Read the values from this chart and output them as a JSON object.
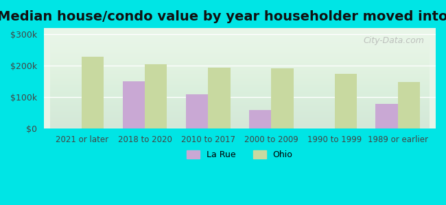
{
  "title": "Median house/condo value by year householder moved into unit",
  "categories": [
    "2021 or later",
    "2018 to 2020",
    "2010 to 2017",
    "2000 to 2009",
    "1990 to 1999",
    "1989 or earlier"
  ],
  "larue_values": [
    null,
    150000,
    110000,
    60000,
    null,
    80000
  ],
  "ohio_values": [
    230000,
    205000,
    195000,
    193000,
    175000,
    148000
  ],
  "larue_color": "#c9a8d4",
  "ohio_color": "#c8d9a0",
  "background_color": "#00e5e5",
  "plot_bg_start": "#e8f5e8",
  "plot_bg_end": "#f5fbf5",
  "title_fontsize": 14,
  "yticks": [
    0,
    100000,
    200000,
    300000
  ],
  "ytick_labels": [
    "$0",
    "$100k",
    "$200k",
    "$300k"
  ],
  "ylim": [
    0,
    320000
  ],
  "legend_labels": [
    "La Rue",
    "Ohio"
  ],
  "watermark": "City-Data.com"
}
